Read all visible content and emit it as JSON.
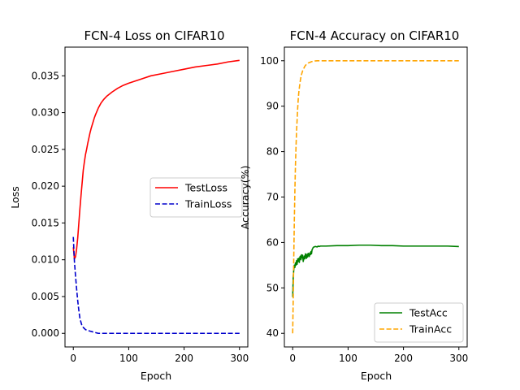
{
  "chart_data": [
    {
      "type": "line",
      "title": "FCN-4 Loss on CIFAR10",
      "xlabel": "Epoch",
      "ylabel": "Loss",
      "xlim": [
        -15,
        315
      ],
      "ylim": [
        -0.00185,
        0.0389
      ],
      "xticks": [
        0,
        100,
        200,
        300
      ],
      "yticks": [
        0.0,
        0.005,
        0.01,
        0.015,
        0.02,
        0.025,
        0.03,
        0.035
      ],
      "tick_labels_x": [
        "0",
        "100",
        "200",
        "300"
      ],
      "tick_labels_y": [
        "0.000",
        "0.005",
        "0.010",
        "0.015",
        "0.020",
        "0.025",
        "0.030",
        "0.035"
      ],
      "legend_position": "center-right",
      "series": [
        {
          "name": "TestLoss",
          "color": "#ff0000",
          "style": "solid",
          "x": [
            0,
            2,
            4,
            6,
            8,
            10,
            12,
            14,
            16,
            18,
            20,
            22,
            24,
            26,
            28,
            30,
            32,
            34,
            36,
            38,
            40,
            45,
            50,
            55,
            60,
            70,
            80,
            90,
            100,
            120,
            140,
            160,
            180,
            200,
            220,
            240,
            260,
            280,
            300
          ],
          "y": [
            0.0117,
            0.0101,
            0.0104,
            0.0115,
            0.013,
            0.015,
            0.017,
            0.0188,
            0.0205,
            0.0222,
            0.0233,
            0.0243,
            0.025,
            0.0258,
            0.0265,
            0.0272,
            0.0278,
            0.0283,
            0.0288,
            0.0293,
            0.0297,
            0.0306,
            0.0313,
            0.0318,
            0.0322,
            0.0328,
            0.0333,
            0.0337,
            0.034,
            0.0345,
            0.035,
            0.0353,
            0.0356,
            0.0359,
            0.0362,
            0.0364,
            0.0366,
            0.0369,
            0.0371
          ]
        },
        {
          "name": "TrainLoss",
          "color": "#0000cc",
          "style": "dashed",
          "x": [
            0,
            2,
            4,
            6,
            8,
            10,
            12,
            15,
            18,
            22,
            26,
            30,
            35,
            40,
            45,
            50,
            60,
            80,
            100,
            150,
            200,
            250,
            300
          ],
          "y": [
            0.0131,
            0.0098,
            0.0078,
            0.006,
            0.0044,
            0.0031,
            0.002,
            0.0012,
            0.0008,
            0.0005,
            0.0004,
            0.0003,
            0.0002,
            0.0001,
            0.0,
            0.0,
            0.0,
            0.0,
            0.0,
            0.0,
            0.0,
            0.0,
            0.0
          ]
        }
      ]
    },
    {
      "type": "line",
      "title": "FCN-4 Accuracy on CIFAR10",
      "xlabel": "Epoch",
      "ylabel": "Accuracy(%)",
      "xlim": [
        -15,
        315
      ],
      "ylim": [
        37,
        103
      ],
      "xticks": [
        0,
        100,
        200,
        300
      ],
      "yticks": [
        40,
        50,
        60,
        70,
        80,
        90,
        100
      ],
      "tick_labels_x": [
        "0",
        "100",
        "200",
        "300"
      ],
      "tick_labels_y": [
        "40",
        "50",
        "60",
        "70",
        "80",
        "90",
        "100"
      ],
      "legend_position": "lower-right",
      "series": [
        {
          "name": "TestAcc",
          "color": "#008000",
          "style": "solid",
          "x": [
            0,
            1,
            2,
            3,
            4,
            5,
            6,
            7,
            8,
            9,
            10,
            11,
            12,
            13,
            14,
            15,
            16,
            17,
            18,
            19,
            20,
            21,
            22,
            23,
            24,
            25,
            26,
            27,
            28,
            29,
            30,
            31,
            32,
            33,
            34,
            35,
            36,
            37,
            38,
            39,
            40,
            42,
            44,
            46,
            48,
            50,
            60,
            80,
            100,
            120,
            140,
            160,
            180,
            200,
            220,
            240,
            260,
            280,
            300
          ],
          "y": [
            48.0,
            52.5,
            54.0,
            55.0,
            54.5,
            55.5,
            55.0,
            56.0,
            55.2,
            56.4,
            55.8,
            56.5,
            55.6,
            56.8,
            57.0,
            56.2,
            57.3,
            56.6,
            57.2,
            55.8,
            56.4,
            57.0,
            56.4,
            57.5,
            57.0,
            56.5,
            57.4,
            56.8,
            57.6,
            57.2,
            56.9,
            57.7,
            57.3,
            58.0,
            57.5,
            58.4,
            58.6,
            58.9,
            59.0,
            59.0,
            59.1,
            59.1,
            59.0,
            59.2,
            59.1,
            59.2,
            59.2,
            59.3,
            59.3,
            59.4,
            59.4,
            59.3,
            59.3,
            59.2,
            59.2,
            59.2,
            59.2,
            59.2,
            59.1
          ]
        },
        {
          "name": "TrainAcc",
          "color": "#ffa500",
          "style": "dashed",
          "x": [
            0,
            1,
            2,
            3,
            4,
            5,
            6,
            7,
            8,
            9,
            10,
            11,
            12,
            13,
            14,
            15,
            16,
            18,
            20,
            22,
            24,
            26,
            28,
            30,
            32,
            34,
            36,
            38,
            40,
            44,
            50,
            60,
            80,
            100,
            150,
            200,
            250,
            300
          ],
          "y": [
            40.0,
            48.0,
            57.0,
            65.0,
            71.5,
            77.0,
            81.0,
            84.5,
            87.0,
            89.5,
            91.5,
            93.0,
            94.0,
            95.0,
            95.8,
            96.5,
            97.0,
            97.8,
            98.3,
            98.8,
            99.1,
            99.3,
            99.5,
            99.6,
            99.7,
            99.8,
            99.85,
            99.9,
            99.95,
            100.0,
            100.0,
            100.0,
            100.0,
            100.0,
            100.0,
            100.0,
            100.0,
            100.0
          ]
        }
      ]
    }
  ]
}
